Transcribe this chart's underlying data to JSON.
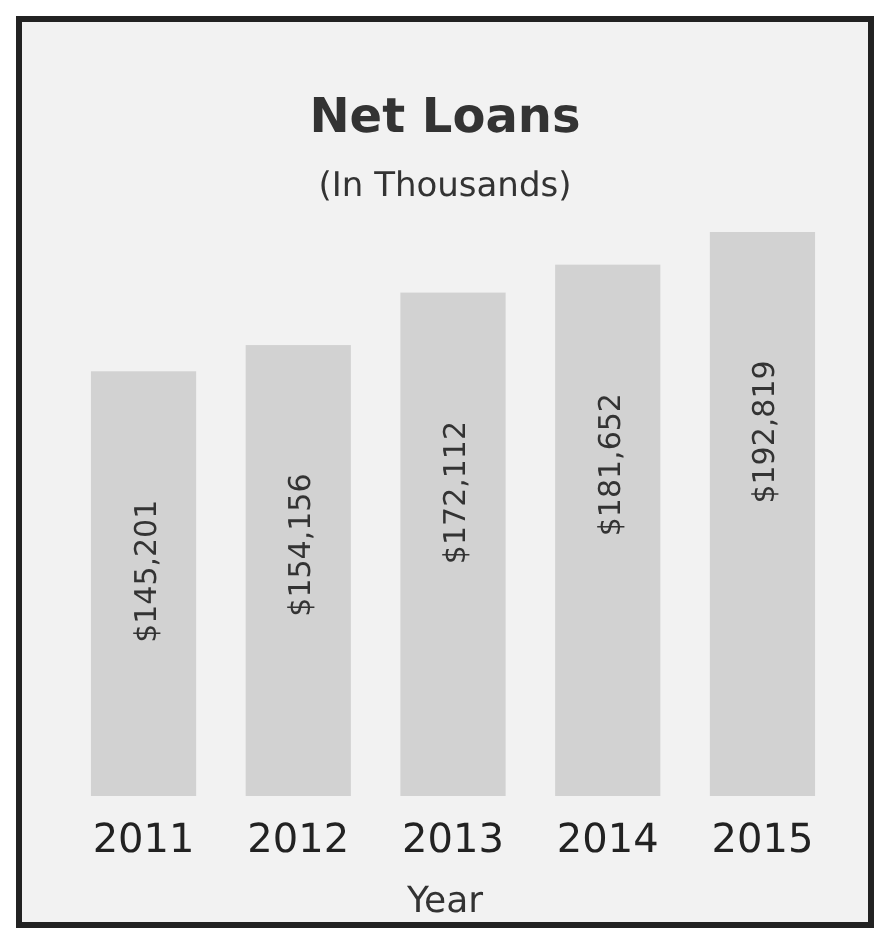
{
  "chart_data": {
    "type": "bar",
    "title": "Net Loans",
    "subtitle": "(In Thousands)",
    "xlabel": "Year",
    "categories": [
      "2011",
      "2012",
      "2013",
      "2014",
      "2015"
    ],
    "values": [
      145201,
      154156,
      172112,
      181652,
      192819
    ],
    "value_labels": [
      "$145,201",
      "$154,156",
      "$172,112",
      "$181,652",
      "$192,819"
    ],
    "color": "#d2d2d2"
  }
}
